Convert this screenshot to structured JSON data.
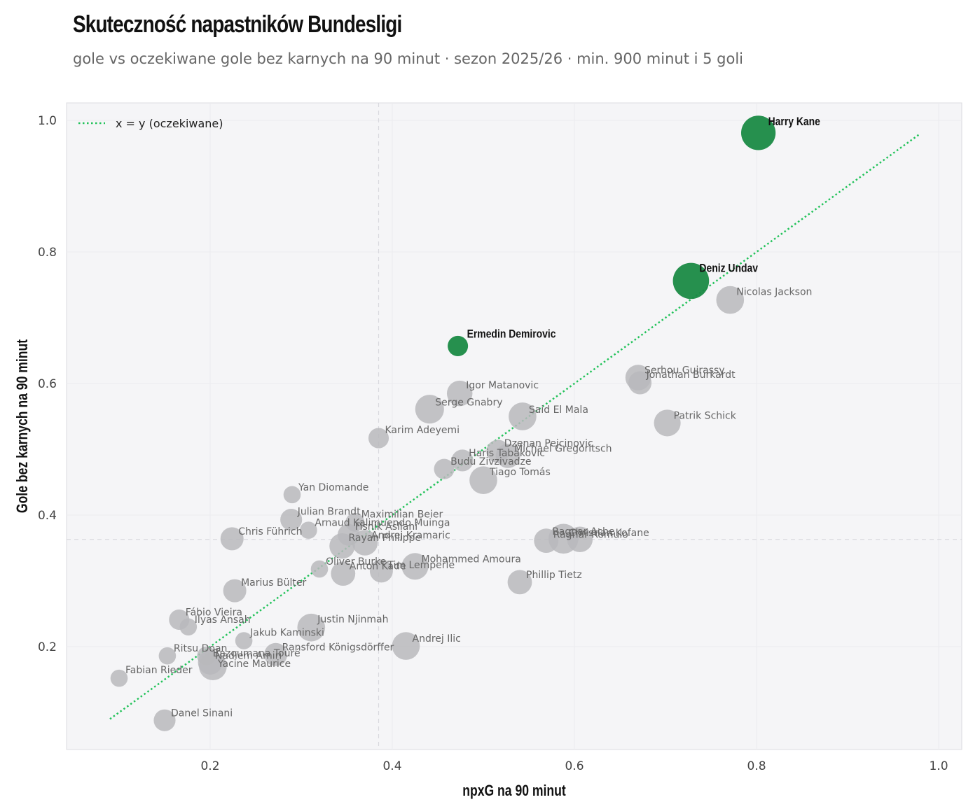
{
  "header": {
    "title": "Skuteczność napastników Bundesligi",
    "subtitle": "gole vs oczekiwane gole bez karnych na 90 minut · sezon 2025/26 · min. 900 minut i 5 goli"
  },
  "colors": {
    "highlight": "#1a8a45",
    "other": "#b8b8bc",
    "reference_line": "#22c25a",
    "panel": "#f5f5f7"
  },
  "chart_data": {
    "type": "scatter",
    "xlabel": "npxG na 90 minut",
    "ylabel": "Gole bez karnych na 90 minut",
    "xlim": [
      0.05,
      1.05
    ],
    "ylim": [
      0.05,
      1.04
    ],
    "xticks": [
      0.2,
      0.4,
      0.6,
      0.8,
      1.0
    ],
    "yticks": [
      0.2,
      0.4,
      0.6,
      0.8,
      1.0
    ],
    "xtick_labels": [
      "0.2",
      "0.4",
      "0.6",
      "0.8",
      "1.0"
    ],
    "ytick_labels": [
      "0.2",
      "0.4",
      "0.6",
      "0.8",
      "1.0"
    ],
    "reference_lines": {
      "x_median": 0.385,
      "y_median": 0.363
    },
    "legend": {
      "label": "x = y (oczekiwane)",
      "position": "top-left"
    },
    "diagonal": {
      "from": 0.09,
      "to": 0.98
    },
    "points": [
      {
        "name": "Harry Kane",
        "x": 0.802,
        "y": 0.981,
        "goals": 20,
        "highlight": true
      },
      {
        "name": "Deniz Undav",
        "x": 0.728,
        "y": 0.756,
        "goals": 22,
        "highlight": true
      },
      {
        "name": "Ermedin Demirovic",
        "x": 0.472,
        "y": 0.657,
        "goals": 7,
        "highlight": true
      },
      {
        "name": "Nicolas Jackson",
        "x": 0.771,
        "y": 0.727,
        "goals": 13
      },
      {
        "name": "Serhou Guirassy",
        "x": 0.67,
        "y": 0.609,
        "goals": 11
      },
      {
        "name": "Jonathan Burkardt",
        "x": 0.672,
        "y": 0.601,
        "goals": 9
      },
      {
        "name": "Patrik Schick",
        "x": 0.702,
        "y": 0.54,
        "goals": 12
      },
      {
        "name": "Igor Matanovic",
        "x": 0.474,
        "y": 0.585,
        "goals": 11
      },
      {
        "name": "Serge Gnabry",
        "x": 0.441,
        "y": 0.561,
        "goals": 14
      },
      {
        "name": "Said El Mala",
        "x": 0.543,
        "y": 0.55,
        "goals": 13
      },
      {
        "name": "Karim Adeyemi",
        "x": 0.385,
        "y": 0.517,
        "goals": 7
      },
      {
        "name": "Dzenan Pejcinovic",
        "x": 0.516,
        "y": 0.497,
        "goals": 9
      },
      {
        "name": "Haris Tabakovic",
        "x": 0.477,
        "y": 0.483,
        "goals": 8
      },
      {
        "name": "Michael Gregoritsch",
        "x": 0.527,
        "y": 0.49,
        "goals": 10
      },
      {
        "name": "Budu Zivzivadze",
        "x": 0.457,
        "y": 0.47,
        "goals": 7
      },
      {
        "name": "Tiago Tomás",
        "x": 0.5,
        "y": 0.453,
        "goals": 13
      },
      {
        "name": "Yan Diomande",
        "x": 0.29,
        "y": 0.431,
        "goals": 5
      },
      {
        "name": "Julian Brandt",
        "x": 0.289,
        "y": 0.393,
        "goals": 8
      },
      {
        "name": "Maximilian Beier",
        "x": 0.359,
        "y": 0.389,
        "goals": 6
      },
      {
        "name": "Arnaud Kalimuendo Muinga",
        "x": 0.308,
        "y": 0.377,
        "goals": 5
      },
      {
        "name": "Fisnik Asllani",
        "x": 0.352,
        "y": 0.37,
        "goals": 8
      },
      {
        "name": "Chris Führich",
        "x": 0.224,
        "y": 0.364,
        "goals": 9
      },
      {
        "name": "Andrej Kramaric",
        "x": 0.37,
        "y": 0.358,
        "goals": 11
      },
      {
        "name": "Rayan Philippe",
        "x": 0.345,
        "y": 0.353,
        "goals": 11
      },
      {
        "name": "Christian Kofane",
        "x": 0.606,
        "y": 0.363,
        "goals": 11
      },
      {
        "name": "Ragnar Ache",
        "x": 0.588,
        "y": 0.364,
        "goals": 15
      },
      {
        "name": "Ragnar Romulo",
        "x": 0.569,
        "y": 0.361,
        "goals": 10
      },
      {
        "name": "Mohammed Amoura",
        "x": 0.425,
        "y": 0.322,
        "goals": 12
      },
      {
        "name": "Oliver Burke",
        "x": 0.32,
        "y": 0.318,
        "goals": 5
      },
      {
        "name": "Tim Lemperle",
        "x": 0.388,
        "y": 0.315,
        "goals": 9
      },
      {
        "name": "Anton Kade",
        "x": 0.346,
        "y": 0.311,
        "goals": 10
      },
      {
        "name": "Phillip Tietz",
        "x": 0.54,
        "y": 0.298,
        "goals": 10
      },
      {
        "name": "Marius Bülter",
        "x": 0.227,
        "y": 0.285,
        "goals": 9
      },
      {
        "name": "Fábio Vieira",
        "x": 0.166,
        "y": 0.241,
        "goals": 7
      },
      {
        "name": "Ilyas Ansah",
        "x": 0.176,
        "y": 0.23,
        "goals": 5
      },
      {
        "name": "Justin Njinmah",
        "x": 0.311,
        "y": 0.229,
        "goals": 13
      },
      {
        "name": "Jakub Kaminski",
        "x": 0.237,
        "y": 0.209,
        "goals": 5
      },
      {
        "name": "Andrej Ilic",
        "x": 0.415,
        "y": 0.201,
        "goals": 13
      },
      {
        "name": "Bazoumana Touré",
        "x": 0.196,
        "y": 0.186,
        "goals": 6
      },
      {
        "name": "Ransford Königsdörffer",
        "x": 0.272,
        "y": 0.188,
        "goals": 9
      },
      {
        "name": "Ritsu Doan",
        "x": 0.153,
        "y": 0.186,
        "goals": 5
      },
      {
        "name": "Nadiem Amiri",
        "x": 0.2,
        "y": 0.176,
        "goals": 10
      },
      {
        "name": "Yacine Maurice",
        "x": 0.203,
        "y": 0.17,
        "goals": 13
      },
      {
        "name": "Fabian Rieder",
        "x": 0.1,
        "y": 0.152,
        "goals": 5
      },
      {
        "name": "Danel Sinani",
        "x": 0.15,
        "y": 0.088,
        "goals": 8
      }
    ],
    "labels": [
      {
        "text": "Harry Kane",
        "x": 0.802,
        "y": 0.981,
        "dx": 14,
        "dy": -11,
        "highlight": true
      },
      {
        "text": "Deniz Undav",
        "x": 0.728,
        "y": 0.756,
        "dx": 12,
        "dy": -13,
        "highlight": true
      },
      {
        "text": "Ermedin Demirovic",
        "x": 0.472,
        "y": 0.657,
        "dx": 13,
        "dy": -12,
        "highlight": true
      },
      {
        "text": "Nicolas Jackson",
        "x": 0.771,
        "y": 0.727,
        "dx": 9,
        "dy": -7
      },
      {
        "text": "Serhou Guirassy",
        "x": 0.67,
        "y": 0.609,
        "dx": 9,
        "dy": -6
      },
      {
        "text": "Jonathan Burkardt",
        "x": 0.672,
        "y": 0.601,
        "dx": 9,
        "dy": -7
      },
      {
        "text": "Patrik Schick",
        "x": 0.702,
        "y": 0.54,
        "dx": 9,
        "dy": -6
      },
      {
        "text": "Igor Matanovic",
        "x": 0.474,
        "y": 0.585,
        "dx": 9,
        "dy": -7
      },
      {
        "text": "Serge Gnabry",
        "x": 0.441,
        "y": 0.561,
        "dx": 8,
        "dy": -5
      },
      {
        "text": "Said El Mala",
        "x": 0.543,
        "y": 0.55,
        "dx": 9,
        "dy": -5
      },
      {
        "text": "Karim Adeyemi",
        "x": 0.385,
        "y": 0.517,
        "dx": 9,
        "dy": -7
      },
      {
        "text": "Dzenan Pejcinovic",
        "x": 0.516,
        "y": 0.497,
        "dx": 9,
        "dy": -7
      },
      {
        "text": "Haris Tabakovic",
        "x": 0.477,
        "y": 0.483,
        "dx": 9,
        "dy": -6
      },
      {
        "text": "Michael Gregoritsch",
        "x": 0.527,
        "y": 0.49,
        "dx": 9,
        "dy": -6
      },
      {
        "text": "Budu Zivzivadze",
        "x": 0.457,
        "y": 0.47,
        "dx": 9,
        "dy": -6
      },
      {
        "text": "Tiago Tomás",
        "x": 0.5,
        "y": 0.453,
        "dx": 9,
        "dy": -7
      },
      {
        "text": "Yan Diomande",
        "x": 0.29,
        "y": 0.431,
        "dx": 9,
        "dy": -6
      },
      {
        "text": "Julian Brandt",
        "x": 0.289,
        "y": 0.393,
        "dx": 9,
        "dy": -7
      },
      {
        "text": "Maximilian Beier",
        "x": 0.359,
        "y": 0.389,
        "dx": 9,
        "dy": -7
      },
      {
        "text": "Arnaud Kalimuendo Muinga",
        "x": 0.308,
        "y": 0.377,
        "dx": 9,
        "dy": -6
      },
      {
        "text": "Fisnik Asllani",
        "x": 0.352,
        "y": 0.37,
        "dx": 9,
        "dy": -7
      },
      {
        "text": "Chris Führich",
        "x": 0.224,
        "y": 0.364,
        "dx": 9,
        "dy": -6
      },
      {
        "text": "Andrej Kramaric",
        "x": 0.37,
        "y": 0.358,
        "dx": 9,
        "dy": -6
      },
      {
        "text": "Rayan Philippe",
        "x": 0.345,
        "y": 0.353,
        "dx": 9,
        "dy": -7
      },
      {
        "text": "Christian Kofane",
        "x": 0.606,
        "y": 0.363,
        "dx": -16,
        "dy": -5
      },
      {
        "text": "Ragnar Ache",
        "x": 0.588,
        "y": 0.364,
        "dx": -16,
        "dy": -6
      },
      {
        "text": "Ragnar Romulo",
        "x": 0.569,
        "y": 0.361,
        "dx": 10,
        "dy": -4
      },
      {
        "text": "Mohammed Amoura",
        "x": 0.425,
        "y": 0.322,
        "dx": 9,
        "dy": -6
      },
      {
        "text": "Oliver Burke",
        "x": 0.32,
        "y": 0.318,
        "dx": 9,
        "dy": -6
      },
      {
        "text": "Tim Lemperle",
        "x": 0.388,
        "y": 0.315,
        "dx": 9,
        "dy": -4
      },
      {
        "text": "Anton Kade",
        "x": 0.346,
        "y": 0.311,
        "dx": 9,
        "dy": -6
      },
      {
        "text": "Phillip Tietz",
        "x": 0.54,
        "y": 0.298,
        "dx": 9,
        "dy": -6
      },
      {
        "text": "Marius Bülter",
        "x": 0.227,
        "y": 0.285,
        "dx": 9,
        "dy": -7
      },
      {
        "text": "Fábio Vieira",
        "x": 0.166,
        "y": 0.241,
        "dx": 9,
        "dy": -6
      },
      {
        "text": "Ilyas Ansah",
        "x": 0.176,
        "y": 0.23,
        "dx": 9,
        "dy": -6
      },
      {
        "text": "Justin Njinmah",
        "x": 0.311,
        "y": 0.229,
        "dx": 9,
        "dy": -7
      },
      {
        "text": "Jakub Kaminski",
        "x": 0.237,
        "y": 0.209,
        "dx": 9,
        "dy": -7
      },
      {
        "text": "Andrej Ilic",
        "x": 0.415,
        "y": 0.201,
        "dx": 9,
        "dy": -6
      },
      {
        "text": "Bazoumana Touré",
        "x": 0.196,
        "y": 0.186,
        "dx": 9,
        "dy": 1
      },
      {
        "text": "Ransford Königsdörffer",
        "x": 0.272,
        "y": 0.188,
        "dx": 9,
        "dy": -6
      },
      {
        "text": "Ritsu Doan",
        "x": 0.153,
        "y": 0.186,
        "dx": 9,
        "dy": -6
      },
      {
        "text": "Nadiem Amiri",
        "x": 0.2,
        "y": 0.176,
        "dx": 7,
        "dy": -5
      },
      {
        "text": "Yacine Maurice",
        "x": 0.203,
        "y": 0.17,
        "dx": 7,
        "dy": 1
      },
      {
        "text": "Fabian Rieder",
        "x": 0.1,
        "y": 0.152,
        "dx": 9,
        "dy": -7
      },
      {
        "text": "Danel Sinani",
        "x": 0.15,
        "y": 0.088,
        "dx": 9,
        "dy": -6
      }
    ]
  }
}
